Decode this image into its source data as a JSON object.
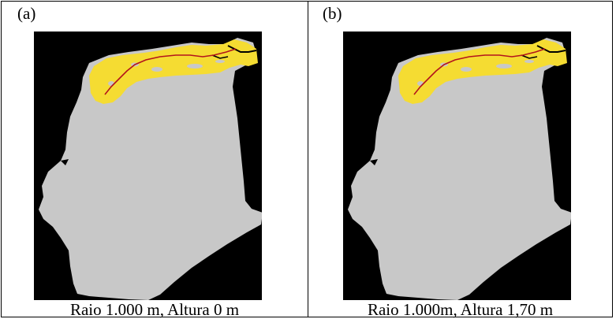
{
  "panels": [
    {
      "label": "(a)",
      "caption": "Raio 1.000 m, Altura 0 m"
    },
    {
      "label": "(b)",
      "caption": "Raio 1.000m, Altura 1,70 m"
    }
  ],
  "colors": {
    "background": "#000000",
    "land": "#c8c8c8",
    "flood_zone": "#f5dc32",
    "river_line": "#b3141c",
    "page": "#ffffff"
  }
}
